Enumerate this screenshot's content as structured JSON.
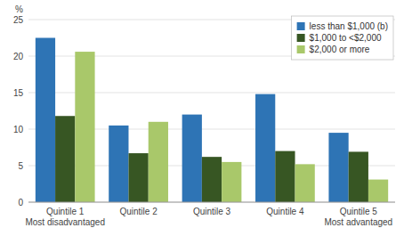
{
  "chart_data": {
    "type": "bar",
    "y_label": "%",
    "categories": [
      "Quintile 1\nMost disadvantaged",
      "Quintile 2",
      "Quintile 3",
      "Quintile 4",
      "Quintile 5\nMost advantaged"
    ],
    "series": [
      {
        "name": "less than $1,000 (b)",
        "color": "#2E74B5",
        "values": [
          22.5,
          10.5,
          12.0,
          14.8,
          9.5
        ]
      },
      {
        "name": "$1,000 to <$2,000",
        "color": "#375623",
        "values": [
          11.8,
          6.7,
          6.2,
          7.0,
          6.9
        ]
      },
      {
        "name": "$2,000 or more",
        "color": "#A9C86A",
        "values": [
          20.6,
          11.0,
          5.5,
          5.2,
          3.1
        ]
      }
    ],
    "ylim": [
      0,
      25
    ],
    "yticks": [
      0,
      5,
      10,
      15,
      20,
      25
    ],
    "grid": true,
    "legend": "upper right"
  }
}
